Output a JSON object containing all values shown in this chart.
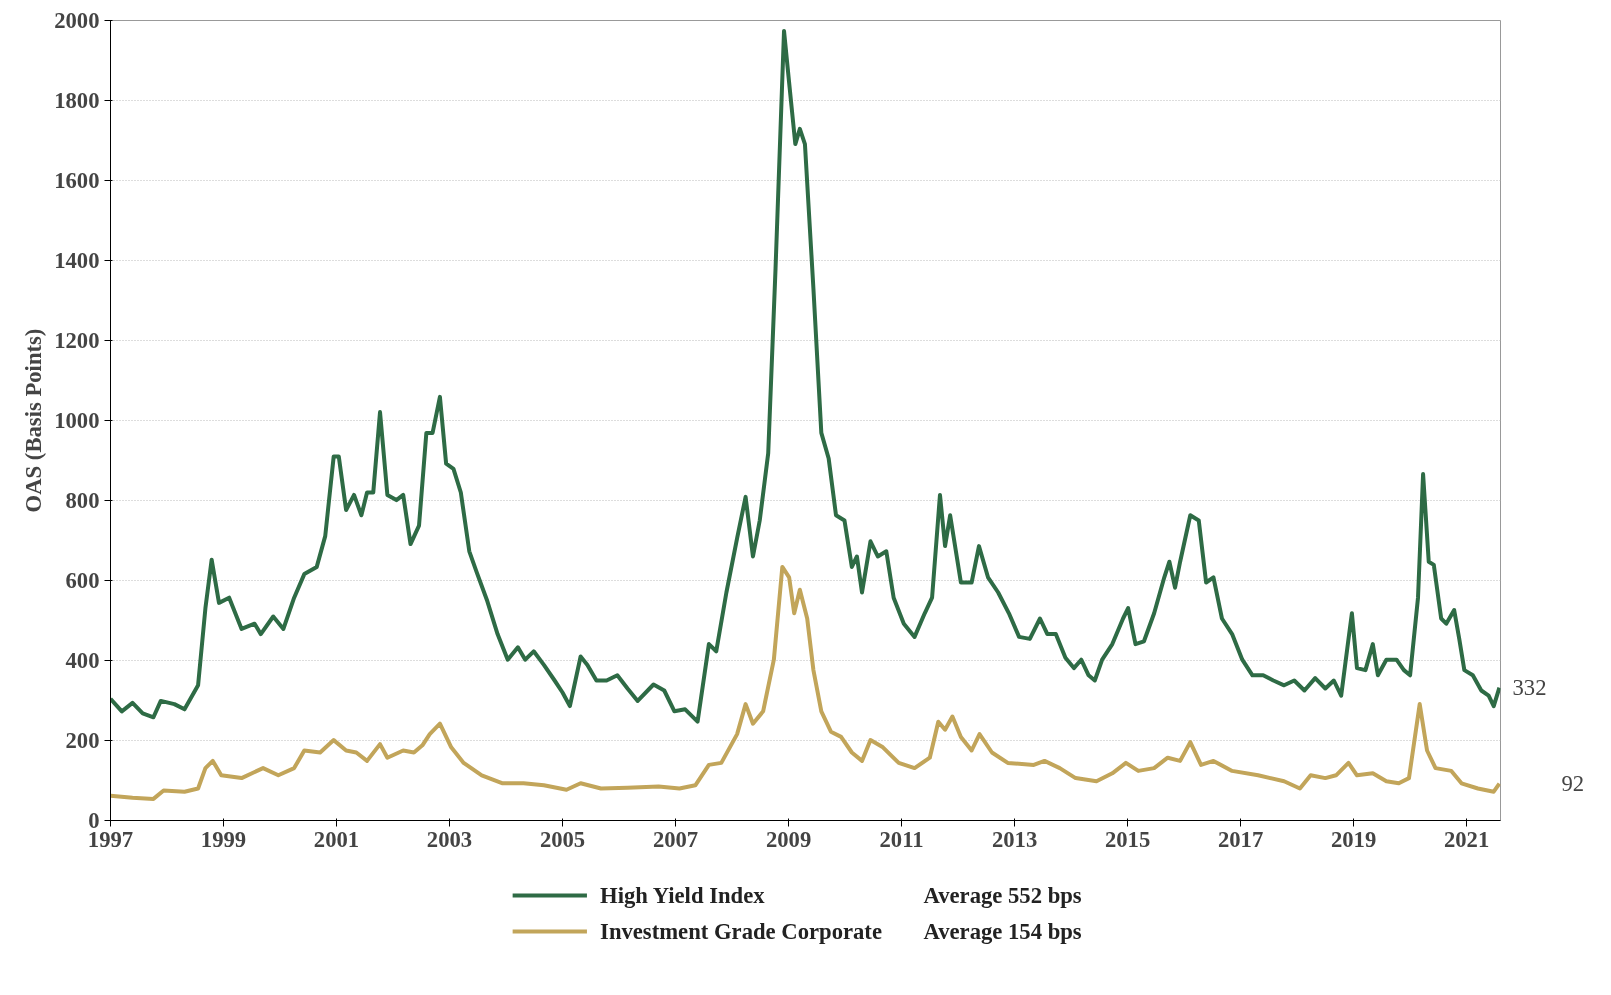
{
  "chart_data": {
    "type": "line",
    "ylabel": "OAS (Basis Points)",
    "xlim": [
      1997,
      2021.6
    ],
    "xticks": [
      1997,
      1999,
      2001,
      2003,
      2005,
      2007,
      2009,
      2011,
      2013,
      2015,
      2017,
      2019,
      2021
    ],
    "ylim": [
      0,
      2000
    ],
    "yticks": [
      0,
      200,
      400,
      600,
      800,
      1000,
      1200,
      1400,
      1600,
      1800,
      2000
    ],
    "grid": "y",
    "legend": "bottom",
    "marker": "none",
    "line_style": "solid",
    "series": [
      {
        "name": "High Yield Index",
        "color": "#2e6b45",
        "x": [
          1997.0,
          1997.2,
          1997.39,
          1997.57,
          1997.76,
          1997.89,
          1998.13,
          1998.31,
          1998.55,
          1998.68,
          1998.79,
          1998.92,
          1999.1,
          1999.32,
          1999.55,
          1999.66,
          1999.88,
          2000.06,
          2000.25,
          2000.43,
          2000.65,
          2000.8,
          2000.95,
          2001.04,
          2001.17,
          2001.31,
          2001.44,
          2001.54,
          2001.65,
          2001.77,
          2001.9,
          2002.06,
          2002.18,
          2002.31,
          2002.46,
          2002.59,
          2002.7,
          2002.83,
          2002.94,
          2003.07,
          2003.2,
          2003.35,
          2003.48,
          2003.66,
          2003.85,
          2004.03,
          2004.21,
          2004.34,
          2004.49,
          2004.67,
          2004.86,
          2005.0,
          2005.13,
          2005.32,
          2005.44,
          2005.6,
          2005.78,
          2005.97,
          2006.15,
          2006.33,
          2006.61,
          2006.8,
          2006.98,
          2007.17,
          2007.39,
          2007.59,
          2007.72,
          2007.9,
          2008.09,
          2008.24,
          2008.37,
          2008.49,
          2008.64,
          2008.77,
          2008.92,
          2009.01,
          2009.12,
          2009.2,
          2009.29,
          2009.44,
          2009.58,
          2009.71,
          2009.84,
          2009.99,
          2010.12,
          2010.21,
          2010.3,
          2010.45,
          2010.58,
          2010.73,
          2010.86,
          2011.04,
          2011.23,
          2011.41,
          2011.54,
          2011.68,
          2011.77,
          2011.86,
          2012.05,
          2012.24,
          2012.37,
          2012.53,
          2012.71,
          2012.9,
          2013.08,
          2013.27,
          2013.45,
          2013.58,
          2013.73,
          2013.9,
          2014.05,
          2014.18,
          2014.31,
          2014.42,
          2014.55,
          2014.73,
          2014.92,
          2015.01,
          2015.14,
          2015.29,
          2015.47,
          2015.65,
          2015.74,
          2015.84,
          2015.93,
          2016.11,
          2016.26,
          2016.39,
          2016.52,
          2016.67,
          2016.85,
          2017.03,
          2017.21,
          2017.4,
          2017.58,
          2017.77,
          2017.95,
          2018.13,
          2018.32,
          2018.5,
          2018.65,
          2018.78,
          2018.91,
          2018.97,
          2019.06,
          2019.21,
          2019.34,
          2019.43,
          2019.58,
          2019.76,
          2019.89,
          2020.0,
          2020.14,
          2020.23,
          2020.33,
          2020.42,
          2020.55,
          2020.64,
          2020.78,
          2020.87,
          2020.96,
          2021.11,
          2021.26,
          2021.39,
          2021.48,
          2021.58
        ],
        "values": [
          304,
          273,
          294,
          268,
          258,
          299,
          291,
          278,
          338,
          531,
          652,
          544,
          557,
          479,
          492,
          466,
          510,
          479,
          557,
          616,
          634,
          711,
          910,
          910,
          776,
          814,
          763,
          820,
          820,
          1021,
          814,
          801,
          814,
          691,
          737,
          969,
          969,
          1059,
          892,
          879,
          820,
          673,
          621,
          552,
          466,
          402,
          433,
          402,
          423,
          389,
          350,
          320,
          286,
          410,
          389,
          350,
          350,
          363,
          330,
          299,
          340,
          325,
          273,
          278,
          247,
          441,
          423,
          570,
          706,
          809,
          660,
          750,
          918,
          1381,
          1974,
          1845,
          1691,
          1729,
          1691,
          1330,
          969,
          905,
          763,
          750,
          634,
          660,
          570,
          698,
          660,
          673,
          557,
          492,
          459,
          518,
          557,
          814,
          686,
          763,
          595,
          595,
          686,
          608,
          570,
          518,
          459,
          454,
          505,
          466,
          466,
          407,
          381,
          402,
          363,
          350,
          402,
          441,
          505,
          531,
          441,
          448,
          518,
          608,
          647,
          582,
          647,
          763,
          750,
          595,
          608,
          505,
          466,
          402,
          363,
          363,
          350,
          338,
          350,
          325,
          356,
          330,
          350,
          312,
          454,
          518,
          381,
          376,
          441,
          363,
          402,
          402,
          376,
          363,
          557,
          866,
          647,
          639,
          505,
          492,
          526,
          454,
          376,
          363,
          325,
          312,
          286,
          332
        ]
      },
      {
        "name": "Investment Grade Corporate",
        "color": "#c2a55a",
        "x": [
          1997.0,
          1997.39,
          1997.76,
          1997.94,
          1998.31,
          1998.55,
          1998.68,
          1998.81,
          1998.96,
          1999.32,
          1999.7,
          1999.97,
          2000.25,
          2000.43,
          2000.71,
          2000.95,
          2001.17,
          2001.35,
          2001.54,
          2001.77,
          2001.9,
          2002.18,
          2002.37,
          2002.52,
          2002.65,
          2002.83,
          2003.03,
          2003.25,
          2003.57,
          2003.94,
          2004.31,
          2004.67,
          2005.07,
          2005.32,
          2005.68,
          2006.15,
          2006.7,
          2007.07,
          2007.35,
          2007.59,
          2007.81,
          2008.09,
          2008.24,
          2008.37,
          2008.55,
          2008.74,
          2008.89,
          2009.01,
          2009.1,
          2009.2,
          2009.33,
          2009.44,
          2009.58,
          2009.75,
          2009.93,
          2010.12,
          2010.3,
          2010.45,
          2010.67,
          2010.95,
          2011.23,
          2011.5,
          2011.65,
          2011.77,
          2011.9,
          2012.05,
          2012.24,
          2012.38,
          2012.6,
          2012.88,
          2013.34,
          2013.53,
          2013.8,
          2014.08,
          2014.45,
          2014.73,
          2014.97,
          2015.19,
          2015.47,
          2015.71,
          2015.93,
          2016.11,
          2016.3,
          2016.52,
          2016.85,
          2017.31,
          2017.77,
          2018.05,
          2018.24,
          2018.5,
          2018.69,
          2018.91,
          2019.06,
          2019.34,
          2019.58,
          2019.8,
          2019.98,
          2020.17,
          2020.3,
          2020.45,
          2020.73,
          2020.91,
          2021.2,
          2021.48,
          2021.58
        ],
        "values": [
          62,
          57,
          54,
          75,
          72,
          80,
          131,
          149,
          113,
          106,
          131,
          113,
          131,
          175,
          170,
          201,
          175,
          170,
          149,
          191,
          157,
          175,
          170,
          188,
          216,
          242,
          183,
          144,
          113,
          93,
          93,
          88,
          77,
          93,
          80,
          82,
          85,
          80,
          88,
          139,
          144,
          216,
          291,
          242,
          273,
          402,
          634,
          608,
          518,
          577,
          505,
          376,
          273,
          222,
          209,
          170,
          149,
          201,
          183,
          144,
          131,
          157,
          247,
          227,
          260,
          209,
          175,
          216,
          170,
          144,
          139,
          149,
          131,
          106,
          98,
          118,
          144,
          124,
          131,
          157,
          149,
          196,
          139,
          149,
          124,
          113,
          98,
          80,
          113,
          106,
          113,
          144,
          113,
          118,
          98,
          93,
          106,
          291,
          175,
          131,
          124,
          93,
          80,
          72,
          92
        ]
      }
    ],
    "annotations": [
      {
        "text": "332",
        "x": 2021.58,
        "y": 332
      },
      {
        "text": "92",
        "x": 2021.58,
        "y": 92
      },
      "Average  552 bps",
      "Average  154 bps"
    ]
  }
}
